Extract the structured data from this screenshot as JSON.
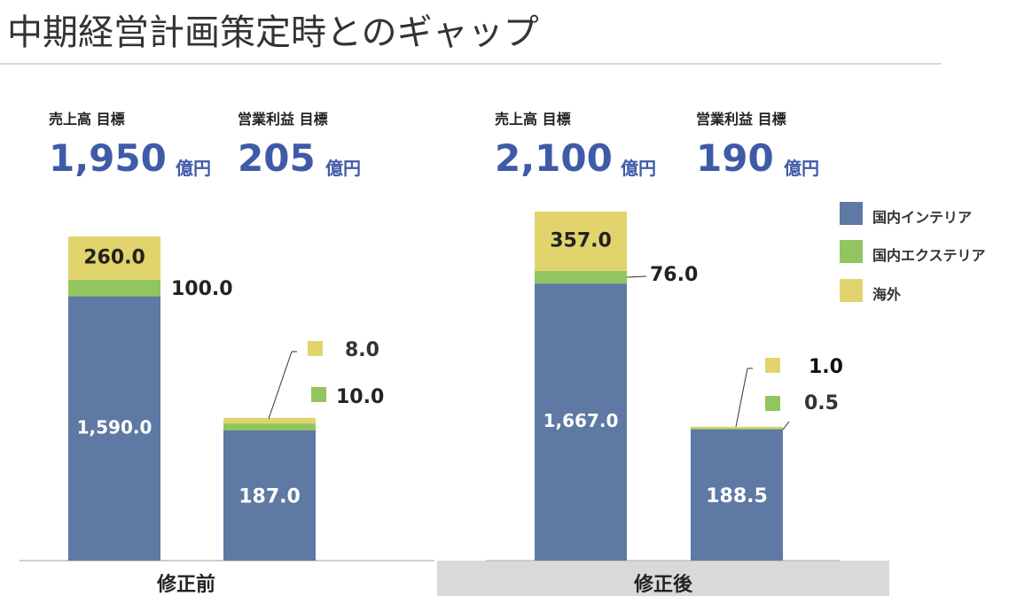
{
  "title": "中期経営計画策定時とのギャップ",
  "colors": {
    "interior": "#5e79a3",
    "exterior": "#92c55f",
    "overseas": "#e2d46d",
    "accent": "#3f5ba8"
  },
  "groups": [
    {
      "name": "修正前",
      "kpis": [
        {
          "label": "売上高 目標",
          "value": "1,950",
          "unit": "億円"
        },
        {
          "label": "営業利益 目標",
          "value": "205",
          "unit": "億円"
        }
      ]
    },
    {
      "name": "修正後",
      "kpis": [
        {
          "label": "売上高 目標",
          "value": "2,100",
          "unit": "億円"
        },
        {
          "label": "営業利益 目標",
          "value": "190",
          "unit": "億円"
        }
      ]
    }
  ],
  "chart_data": {
    "type": "bar",
    "stacked": true,
    "categories": [
      "修正前",
      "修正後"
    ],
    "series": [
      {
        "name": "国内インテリア",
        "values": [
          1590.0,
          1667.0
        ],
        "profit_values": [
          187.0,
          188.5
        ]
      },
      {
        "name": "国内エクステリア",
        "values": [
          100.0,
          76.0
        ],
        "profit_values": [
          10.0,
          0.5
        ]
      },
      {
        "name": "海外",
        "values": [
          260.0,
          357.0
        ],
        "profit_values": [
          8.0,
          1.0
        ]
      }
    ],
    "labels": {
      "sales": [
        [
          "1,590.0",
          "100.0",
          "260.0"
        ],
        [
          "1,667.0",
          "76.0",
          "357.0"
        ]
      ],
      "profit": [
        [
          "187.0",
          "10.0",
          "8.0"
        ],
        [
          "188.5",
          "0.5",
          "1.0"
        ]
      ]
    },
    "legend_position": "top-right"
  }
}
